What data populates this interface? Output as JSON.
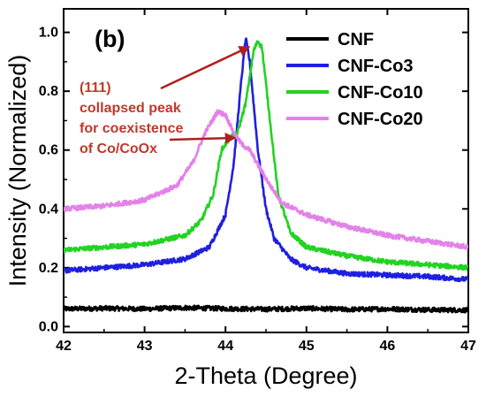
{
  "chart_data": {
    "type": "line",
    "panel_label": "(b)",
    "xlabel": "2-Theta (Degree)",
    "ylabel": "Intensity (Normalized)",
    "xlim": [
      42,
      47
    ],
    "ylim": [
      -0.02,
      1.08
    ],
    "xticks": [
      "42",
      "43",
      "44",
      "45",
      "46",
      "47"
    ],
    "yticks": [
      "0.0",
      "0.2",
      "0.4",
      "0.6",
      "0.8",
      "1.0"
    ],
    "grid": false,
    "legend_position": "top-right",
    "annotation": {
      "lines": [
        "(111)",
        "collapsed peak",
        "for coexistence",
        "of Co/CoOx"
      ],
      "color": "#c0392b"
    },
    "series": [
      {
        "name": "CNF",
        "color": "#000000",
        "x": [
          42,
          42.5,
          43,
          43.5,
          44,
          44.5,
          45,
          45.5,
          46,
          46.5,
          47
        ],
        "values": [
          0.06,
          0.062,
          0.06,
          0.064,
          0.061,
          0.059,
          0.062,
          0.058,
          0.06,
          0.057,
          0.056
        ]
      },
      {
        "name": "CNF-Co3",
        "color": "#1f1fe0",
        "x": [
          42,
          42.5,
          43,
          43.5,
          43.8,
          44.0,
          44.1,
          44.2,
          44.25,
          44.3,
          44.4,
          44.5,
          44.6,
          44.8,
          45,
          45.5,
          46,
          46.5,
          47
        ],
        "values": [
          0.19,
          0.2,
          0.21,
          0.23,
          0.27,
          0.38,
          0.55,
          0.85,
          0.98,
          0.9,
          0.6,
          0.4,
          0.3,
          0.23,
          0.2,
          0.18,
          0.175,
          0.17,
          0.16
        ]
      },
      {
        "name": "CNF-Co10",
        "color": "#22d322",
        "x": [
          42,
          42.5,
          43,
          43.5,
          43.7,
          43.85,
          43.95,
          44.05,
          44.15,
          44.25,
          44.35,
          44.4,
          44.45,
          44.55,
          44.65,
          44.8,
          45,
          45.5,
          46,
          46.5,
          47
        ],
        "values": [
          0.26,
          0.27,
          0.28,
          0.31,
          0.36,
          0.45,
          0.6,
          0.64,
          0.66,
          0.76,
          0.94,
          0.97,
          0.95,
          0.7,
          0.45,
          0.32,
          0.27,
          0.24,
          0.22,
          0.21,
          0.2
        ]
      },
      {
        "name": "CNF-Co20",
        "color": "#e382e8",
        "x": [
          42,
          42.5,
          43,
          43.4,
          43.6,
          43.75,
          43.9,
          44.0,
          44.1,
          44.2,
          44.3,
          44.4,
          44.55,
          44.7,
          45,
          45.5,
          46,
          46.5,
          47
        ],
        "values": [
          0.4,
          0.41,
          0.43,
          0.48,
          0.56,
          0.66,
          0.73,
          0.72,
          0.66,
          0.62,
          0.6,
          0.55,
          0.48,
          0.42,
          0.38,
          0.34,
          0.31,
          0.29,
          0.27
        ]
      }
    ]
  }
}
